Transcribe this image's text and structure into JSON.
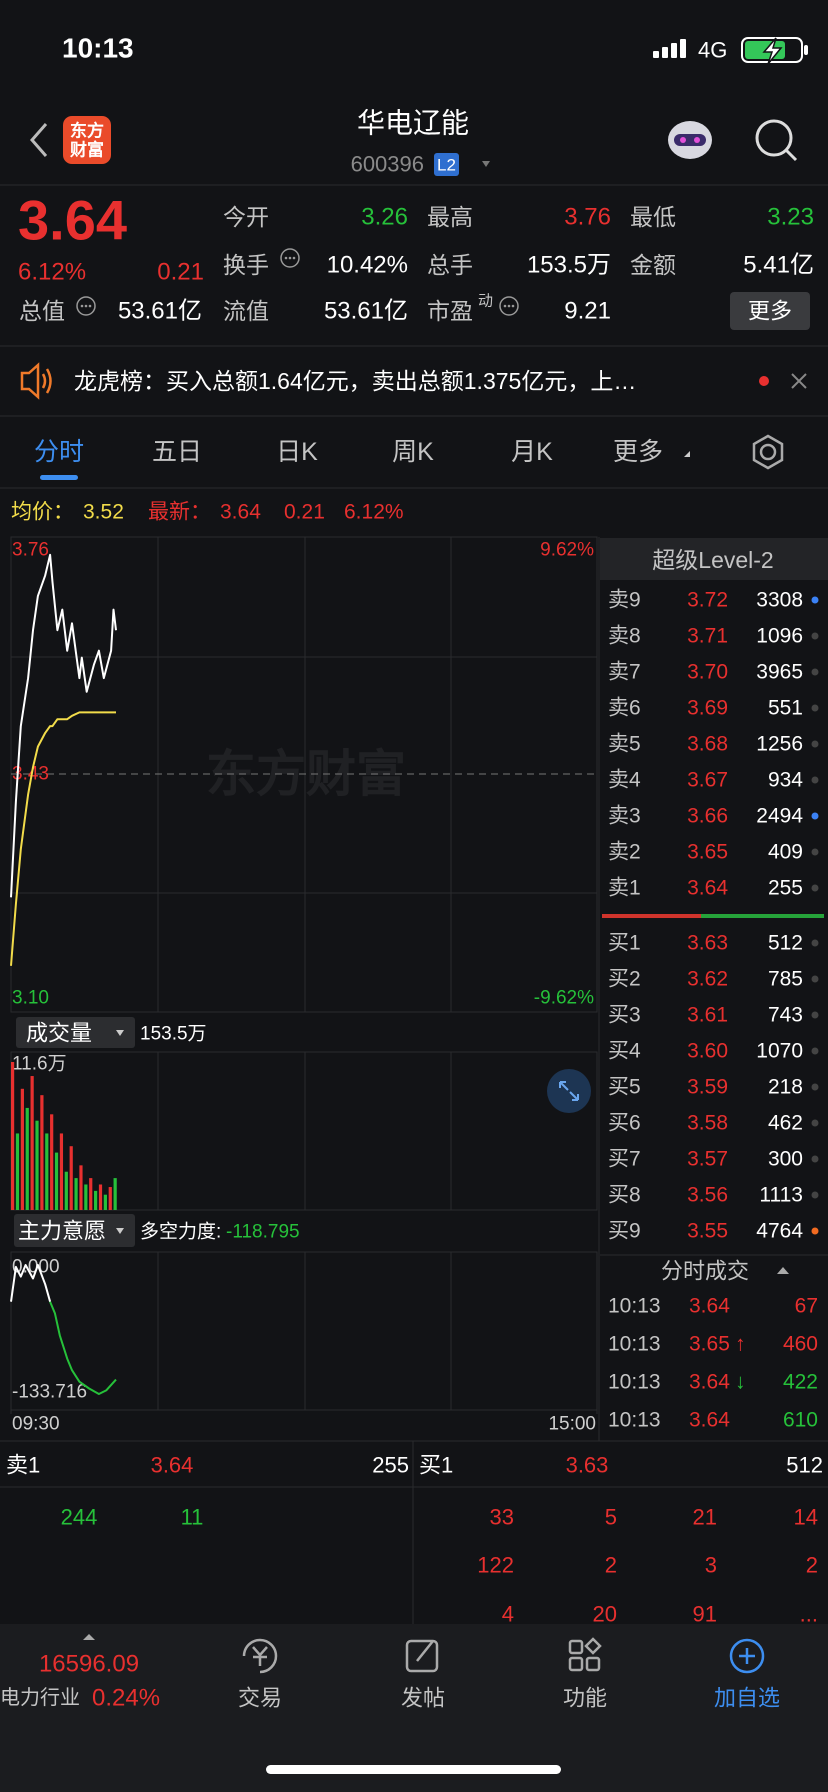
{
  "status_bar": {
    "time": "10:13",
    "network": "4G"
  },
  "header": {
    "logo_lines": [
      "东方",
      "财富"
    ],
    "title": "华电辽能",
    "code": "600396",
    "badge": "L2"
  },
  "quote": {
    "price": "3.64",
    "change_pct": "6.12%",
    "change": "0.21",
    "stats": [
      {
        "label": "今开",
        "value": "3.26",
        "color": "#26c13a"
      },
      {
        "label": "最高",
        "value": "3.76",
        "color": "#e8302f"
      },
      {
        "label": "最低",
        "value": "3.23",
        "color": "#26c13a"
      },
      {
        "label": "换手",
        "value": "10.42%",
        "color": "#ffffff"
      },
      {
        "label": "总手",
        "value": "153.5万",
        "color": "#ffffff"
      },
      {
        "label": "金额",
        "value": "5.41亿",
        "color": "#ffffff"
      },
      {
        "label": "总值",
        "value": "53.61亿",
        "color": "#ffffff"
      },
      {
        "label": "流值",
        "value": "53.61亿",
        "color": "#ffffff"
      },
      {
        "label": "市盈",
        "label_sup": "动",
        "value": "9.21",
        "color": "#ffffff"
      }
    ],
    "more": "更多"
  },
  "banner": {
    "text": "龙虎榜：买入总额1.64亿元，卖出总额1.375亿元，上…"
  },
  "tabs": [
    "分时",
    "五日",
    "日K",
    "周K",
    "月K",
    "更多"
  ],
  "summary": {
    "avg_label": "均价：",
    "avg": "3.52",
    "latest_label": "最新：",
    "latest": "3.64",
    "change": "0.21",
    "change_pct": "6.12%"
  },
  "watermark": "东方财富",
  "chart_data": [
    {
      "type": "line",
      "x": [
        0,
        2,
        4,
        7,
        9,
        11,
        14,
        16,
        17,
        19,
        21,
        23,
        25,
        28,
        29,
        31,
        34,
        36,
        38,
        41,
        42,
        43
      ],
      "series": [
        {
          "color": "#ffffff",
          "values": [
            3.25,
            3.39,
            3.5,
            3.57,
            3.64,
            3.69,
            3.72,
            3.75,
            3.71,
            3.64,
            3.67,
            3.61,
            3.65,
            3.57,
            3.6,
            3.55,
            3.59,
            3.61,
            3.57,
            3.61,
            3.67,
            3.64
          ]
        },
        {
          "color": "#f2dc4a",
          "values": [
            3.15,
            3.24,
            3.32,
            3.4,
            3.44,
            3.47,
            3.49,
            3.5,
            3.5,
            3.51,
            3.51,
            3.51,
            3.515,
            3.52,
            3.52,
            3.52,
            3.52,
            3.52,
            3.52,
            3.52,
            3.52,
            3.52
          ]
        }
      ],
      "xlim": [
        0,
        240
      ],
      "ylim": [
        3.1,
        3.76
      ],
      "yticks": [
        3.76,
        3.43,
        {
          "value": 3.1,
          "label": "3.10"
        }
      ],
      "y2lim": [
        -9.62,
        9.62
      ],
      "y2ticks": [
        {
          "value": 9.62,
          "label": "9.62%"
        },
        {
          "value": -9.62,
          "label": "-9.62%"
        }
      ]
    },
    {
      "type": "bar",
      "title": "成交量",
      "total": "153.5万",
      "x": [
        0,
        2,
        4,
        6,
        8,
        10,
        12,
        14,
        16,
        18,
        20,
        22,
        24,
        26,
        28,
        30,
        32,
        34,
        36,
        38,
        40,
        42
      ],
      "values": [
        11.6,
        6,
        9.5,
        8,
        10.5,
        7,
        9,
        6,
        7.5,
        4.5,
        6,
        3,
        5,
        2.5,
        3.5,
        2,
        2.5,
        1.5,
        2,
        1.2,
        1.8,
        2.5
      ],
      "colors": [
        "#e8302f",
        "#26c13a",
        "#e8302f",
        "#26c13a",
        "#e8302f",
        "#26c13a",
        "#e8302f",
        "#26c13a",
        "#e8302f",
        "#26c13a",
        "#e8302f",
        "#26c13a",
        "#e8302f",
        "#26c13a",
        "#e8302f",
        "#26c13a",
        "#e8302f",
        "#26c13a",
        "#e8302f",
        "#26c13a",
        "#e8302f",
        "#26c13a"
      ],
      "xlim": [
        0,
        240
      ],
      "ylim": [
        0,
        11.6
      ],
      "yticks": [
        {
          "value": 11.6,
          "label": "11.6万"
        }
      ]
    },
    {
      "type": "line",
      "title": "主力意愿",
      "indicator_label": "多空力度:",
      "indicator_value": "-118.795",
      "x": [
        0,
        2,
        4,
        6,
        9,
        11,
        14,
        16,
        18,
        20,
        23,
        25,
        28,
        32,
        36,
        39,
        43
      ],
      "series": [
        {
          "color": "#ffffff",
          "values": [
            -38,
            -2,
            -12,
            0,
            -14,
            0,
            -20,
            -38,
            null,
            null,
            null,
            null,
            null,
            null,
            null,
            null,
            null
          ]
        },
        {
          "color": "#26c13a",
          "values": [
            null,
            null,
            null,
            null,
            null,
            null,
            null,
            -38,
            -50,
            -73,
            -97,
            -109,
            -121,
            -128,
            -133.716,
            -130,
            -118.795
          ]
        }
      ],
      "xlim": [
        0,
        240
      ],
      "xticks": [
        {
          "value": 0,
          "label": "09:30"
        },
        {
          "value": 240,
          "label": "15:00"
        }
      ],
      "ylim": [
        -133.716,
        0
      ],
      "yticks": [
        {
          "value": 0,
          "label": "0.000"
        },
        {
          "value": -133.716,
          "label": "-133.716"
        }
      ]
    }
  ],
  "level2": {
    "title": "超级Level-2",
    "asks": [
      {
        "label": "卖9",
        "price": "3.72",
        "volume": "3308",
        "dot": "#3b82f6"
      },
      {
        "label": "卖8",
        "price": "3.71",
        "volume": "1096",
        "dot": "#444"
      },
      {
        "label": "卖7",
        "price": "3.70",
        "volume": "3965",
        "dot": "#444"
      },
      {
        "label": "卖6",
        "price": "3.69",
        "volume": "551",
        "dot": "#444"
      },
      {
        "label": "卖5",
        "price": "3.68",
        "volume": "1256",
        "dot": "#444"
      },
      {
        "label": "卖4",
        "price": "3.67",
        "volume": "934",
        "dot": "#444"
      },
      {
        "label": "卖3",
        "price": "3.66",
        "volume": "2494",
        "dot": "#3b82f6"
      },
      {
        "label": "卖2",
        "price": "3.65",
        "volume": "409",
        "dot": "#444"
      },
      {
        "label": "卖1",
        "price": "3.64",
        "volume": "255",
        "dot": "#444"
      }
    ],
    "bids": [
      {
        "label": "买1",
        "price": "3.63",
        "volume": "512",
        "dot": "#444"
      },
      {
        "label": "买2",
        "price": "3.62",
        "volume": "785",
        "dot": "#444"
      },
      {
        "label": "买3",
        "price": "3.61",
        "volume": "743",
        "dot": "#444"
      },
      {
        "label": "买4",
        "price": "3.60",
        "volume": "1070",
        "dot": "#444"
      },
      {
        "label": "买5",
        "price": "3.59",
        "volume": "218",
        "dot": "#444"
      },
      {
        "label": "买6",
        "price": "3.58",
        "volume": "462",
        "dot": "#444"
      },
      {
        "label": "买7",
        "price": "3.57",
        "volume": "300",
        "dot": "#444"
      },
      {
        "label": "买8",
        "price": "3.56",
        "volume": "1113",
        "dot": "#444"
      },
      {
        "label": "买9",
        "price": "3.55",
        "volume": "4764",
        "dot": "#f26b21"
      }
    ]
  },
  "trades": {
    "title": "分时成交",
    "rows": [
      {
        "time": "10:13",
        "price": "3.64",
        "volume": "67",
        "color": "#e8302f"
      },
      {
        "time": "10:13",
        "price": "3.65",
        "arrow": "↑",
        "arrow_color": "#e8302f",
        "volume": "460",
        "color": "#e8302f"
      },
      {
        "time": "10:13",
        "price": "3.64",
        "arrow": "↓",
        "arrow_color": "#26c13a",
        "volume": "422",
        "color": "#26c13a"
      },
      {
        "time": "10:13",
        "price": "3.64",
        "volume": "610",
        "color": "#26c13a"
      }
    ]
  },
  "queue": {
    "ask": {
      "label": "卖1",
      "price": "3.64",
      "volume": "255",
      "orders": [
        [
          "244",
          "11"
        ]
      ]
    },
    "bid": {
      "label": "买1",
      "price": "3.63",
      "volume": "512",
      "orders": [
        [
          "33",
          "5",
          "21",
          "14"
        ],
        [
          "122",
          "2",
          "3",
          "2"
        ],
        [
          "4",
          "20",
          "91",
          "..."
        ]
      ]
    }
  },
  "footer": {
    "index_value": "16596.09",
    "index_name": "电力行业",
    "index_change": "0.24%",
    "nav": [
      "交易",
      "发帖",
      "功能",
      "加自选"
    ]
  }
}
